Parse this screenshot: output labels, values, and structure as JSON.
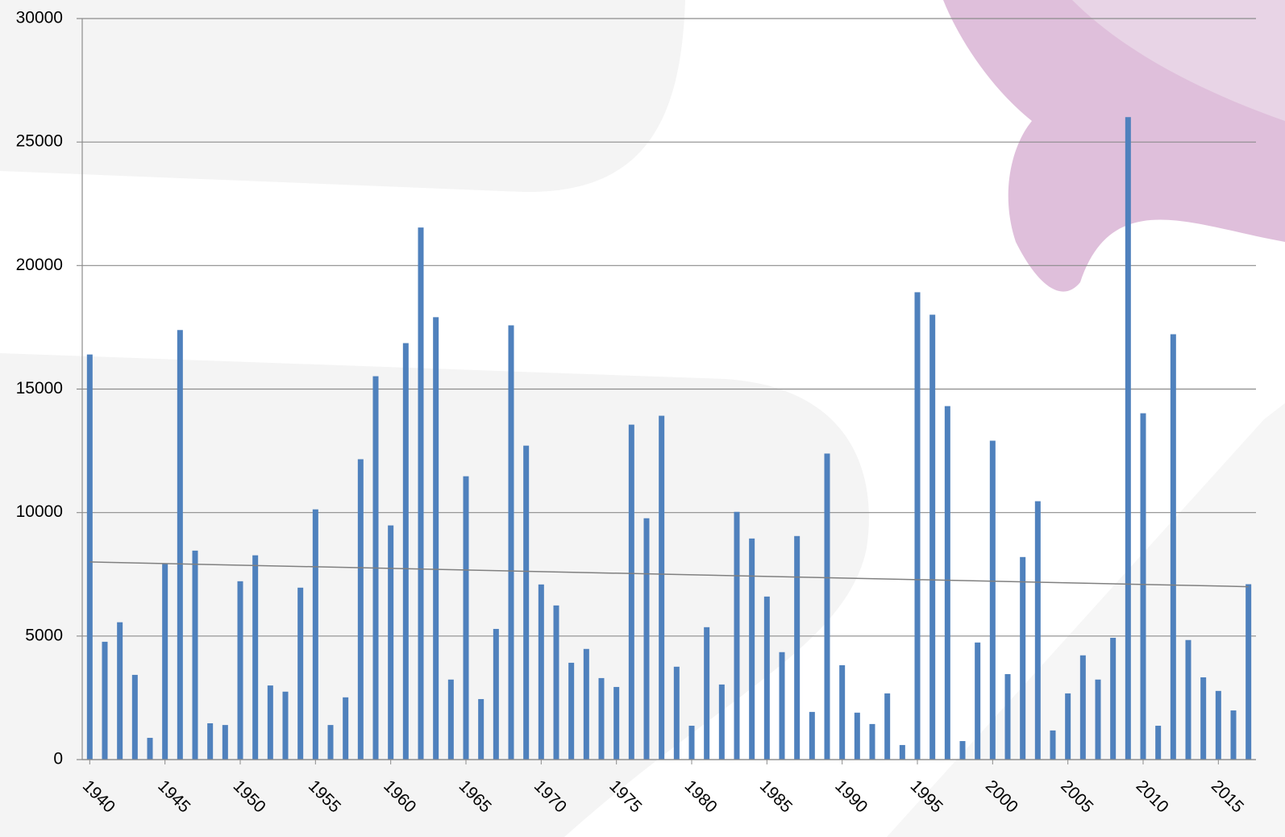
{
  "chart_data": {
    "type": "bar",
    "x": [
      1940,
      1941,
      1942,
      1943,
      1944,
      1945,
      1946,
      1947,
      1948,
      1949,
      1950,
      1951,
      1952,
      1953,
      1954,
      1955,
      1956,
      1957,
      1958,
      1959,
      1960,
      1961,
      1962,
      1963,
      1964,
      1965,
      1966,
      1967,
      1968,
      1969,
      1970,
      1971,
      1972,
      1973,
      1974,
      1975,
      1976,
      1977,
      1978,
      1979,
      1980,
      1981,
      1982,
      1983,
      1984,
      1985,
      1986,
      1987,
      1988,
      1989,
      1990,
      1991,
      1992,
      1993,
      1994,
      1995,
      1996,
      1997,
      1998,
      1999,
      2000,
      2001,
      2002,
      2003,
      2004,
      2005,
      2006,
      2007,
      2008,
      2009,
      2010,
      2011,
      2012,
      2013,
      2014,
      2015,
      2016,
      2017
    ],
    "values": [
      16400,
      4770,
      5560,
      3430,
      880,
      7940,
      17390,
      8460,
      1470,
      1400,
      7220,
      8270,
      3000,
      2750,
      6960,
      10130,
      1400,
      2520,
      12160,
      15520,
      9480,
      16860,
      21540,
      17910,
      3240,
      11470,
      2450,
      5290,
      17580,
      12710,
      7090,
      6240,
      3920,
      4480,
      3300,
      2940,
      13560,
      9770,
      13920,
      3760,
      1370,
      5360,
      3040,
      10030,
      8950,
      6600,
      4350,
      9050,
      1930,
      12390,
      3820,
      1900,
      1440,
      2680,
      590,
      18920,
      18010,
      14310,
      750,
      4740,
      12910,
      3460,
      8200,
      10460,
      1180,
      2680,
      4220,
      3240,
      4930,
      26010,
      14020,
      1370,
      17220,
      4840,
      3330,
      2780,
      1990,
      7100
    ],
    "color": "#4f81bd",
    "trend": {
      "x": [
        1940,
        2017
      ],
      "values": [
        8000,
        7000
      ],
      "color": "#808080"
    },
    "xlim": [
      1939.5,
      2017.5
    ],
    "xticks": [
      1940,
      1945,
      1950,
      1955,
      1960,
      1965,
      1970,
      1975,
      1980,
      1985,
      1990,
      1995,
      2000,
      2005,
      2010,
      2015
    ],
    "ylim": [
      0,
      30000
    ],
    "yticks": [
      0,
      5000,
      10000,
      15000,
      20000,
      25000,
      30000
    ],
    "grid": true
  }
}
